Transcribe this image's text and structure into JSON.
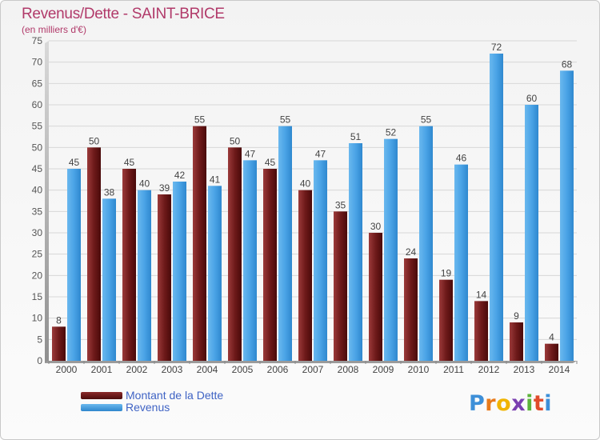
{
  "header": {
    "title": "Revenus/Dette - SAINT-BRICE",
    "subtitle": "(en milliers d'€)"
  },
  "chart_data": {
    "type": "bar",
    "categories": [
      "2000",
      "2001",
      "2002",
      "2003",
      "2004",
      "2005",
      "2006",
      "2007",
      "2008",
      "2009",
      "2010",
      "2011",
      "2012",
      "2013",
      "2014"
    ],
    "series": [
      {
        "name": "Montant de la Dette",
        "color": "#7a1e1e",
        "values": [
          8,
          50,
          45,
          39,
          55,
          50,
          45,
          40,
          35,
          30,
          24,
          19,
          14,
          9,
          4
        ]
      },
      {
        "name": "Revenus",
        "color": "#3d9be0",
        "values": [
          45,
          38,
          40,
          42,
          41,
          47,
          55,
          47,
          51,
          52,
          55,
          46,
          72,
          60,
          68
        ]
      }
    ],
    "ylim": [
      0,
      75
    ],
    "yticks": [
      0,
      5,
      10,
      15,
      20,
      25,
      30,
      35,
      40,
      45,
      50,
      55,
      60,
      65,
      70,
      75
    ],
    "grid": true,
    "legend_position": "bottom-left"
  },
  "legend": {
    "items": [
      {
        "label": "Montant de la Dette",
        "swatch": "#5a0f0f"
      },
      {
        "label": "Revenus",
        "swatch": "#3d9be0"
      }
    ]
  },
  "brand": {
    "letters": [
      "P",
      "r",
      "o",
      "x",
      "i",
      "t",
      "i"
    ],
    "colors": [
      "#3d8fd8",
      "#e87a1a",
      "#f0b400",
      "#7a3fb0",
      "#5cb33a",
      "#e04a2a",
      "#3d8fd8"
    ]
  }
}
